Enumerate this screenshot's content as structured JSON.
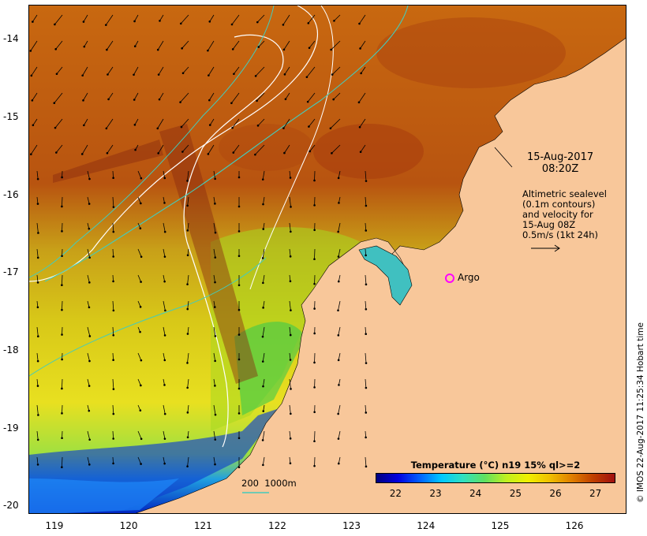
{
  "map": {
    "x_axis_ticks": [
      "119",
      "120",
      "121",
      "122",
      "123",
      "124",
      "125",
      "126"
    ],
    "y_axis_ticks": [
      "-14",
      "-15",
      "-16",
      "-17",
      "-18",
      "-19",
      "-20"
    ],
    "lon_range": [
      118.65,
      126.7
    ],
    "lat_range": [
      -13.55,
      -20.1
    ],
    "land_color": "#f8c79a",
    "contour_color_sealevel": "#ffffff",
    "contour_color_bathy": "#44ccbb"
  },
  "annotations": {
    "date": "15-Aug-2017",
    "time": "08:20Z",
    "altimetry_line1": "Altimetric sealevel",
    "altimetry_line2": "(0.1m contours)",
    "altimetry_line3": "and velocity for",
    "altimetry_line4": "15-Aug 08Z",
    "velocity_scale": "0.5m/s (1kt 24h)",
    "argo_label": "Argo",
    "contour_legend": "200  1000m"
  },
  "colorbar": {
    "title": "Temperature (°C) n19 15% ql>=2",
    "ticks": [
      "22",
      "23",
      "24",
      "25",
      "26",
      "27"
    ],
    "range": [
      21.5,
      27.5
    ],
    "colors": [
      "#000080",
      "#0000e0",
      "#0060ff",
      "#00c8ff",
      "#30e0c0",
      "#60e060",
      "#c0f020",
      "#f0f000",
      "#f0c000",
      "#e08000",
      "#c04000",
      "#a01010"
    ]
  },
  "credit": "© IMOS 22-Aug-2017 11:25:34 Hobart time"
}
